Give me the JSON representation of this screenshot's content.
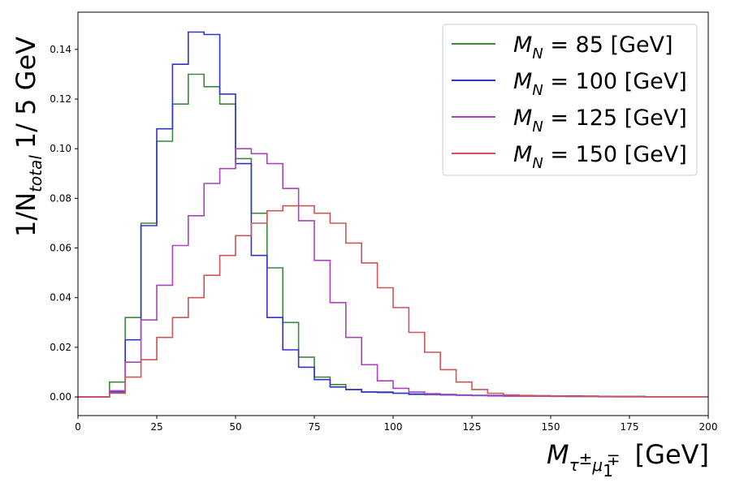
{
  "chart_data": {
    "type": "line",
    "style": "step-histogram",
    "xlabel": {
      "main": "M",
      "sub": "τ",
      "sub_sup": "±",
      "sub2": "μ",
      "sub2_sub": "1",
      "sub2_sup": "∓",
      "unit": "[GeV]"
    },
    "ylabel": {
      "prefix": "1/N",
      "sub": "total",
      "suffix": "1/ 5 GeV"
    },
    "xlim": [
      0,
      200
    ],
    "ylim": [
      -0.0075,
      0.155
    ],
    "xticks": [
      "0",
      "25",
      "50",
      "75",
      "100",
      "125",
      "150",
      "175",
      "200"
    ],
    "yticks": [
      "0.00",
      "0.02",
      "0.04",
      "0.06",
      "0.08",
      "0.10",
      "0.12",
      "0.14"
    ],
    "legend_position": "top-right",
    "bin_width": 5,
    "x_edges": [
      0,
      5,
      10,
      15,
      20,
      25,
      30,
      35,
      40,
      45,
      50,
      55,
      60,
      65,
      70,
      75,
      80,
      85,
      90,
      95,
      100,
      105,
      110,
      115,
      120,
      125,
      130,
      135,
      140,
      145,
      150,
      155,
      160,
      165,
      170,
      175,
      180,
      185,
      190,
      195,
      200
    ],
    "series": [
      {
        "name": "M_N = 85 [GeV]",
        "legend": {
          "m": "M",
          "sub": "N",
          "rest": " =  85  [GeV]"
        },
        "color": "#3a8a3a",
        "values": [
          0.0,
          0.0,
          0.006,
          0.032,
          0.07,
          0.103,
          0.118,
          0.13,
          0.125,
          0.118,
          0.096,
          0.074,
          0.052,
          0.03,
          0.016,
          0.008,
          0.005,
          0.003,
          0.002,
          0.002,
          0.0015,
          0.001,
          0.001,
          0.001,
          0.0008,
          0.0006,
          0.0005,
          0.0004,
          0.0004,
          0.0003,
          0.0003,
          0.0002,
          0.0002,
          0.0002,
          0.0001,
          0.0001,
          0.0001,
          0.0001,
          0.0001,
          0.0001
        ]
      },
      {
        "name": "M_N = 100 [GeV]",
        "legend": {
          "m": "M",
          "sub": "N",
          "rest": " = 100 [GeV]"
        },
        "color": "#3333cc",
        "values": [
          0.0,
          0.0,
          0.002,
          0.023,
          0.069,
          0.108,
          0.134,
          0.147,
          0.146,
          0.122,
          0.094,
          0.057,
          0.032,
          0.019,
          0.012,
          0.007,
          0.004,
          0.003,
          0.002,
          0.0018,
          0.0015,
          0.0012,
          0.001,
          0.0008,
          0.0007,
          0.0006,
          0.0006,
          0.0005,
          0.0005,
          0.0005,
          0.0004,
          0.0004,
          0.0003,
          0.0002,
          0.0002,
          0.0002,
          0.0001,
          0.0001,
          0.0001,
          0.0001
        ]
      },
      {
        "name": "M_N = 125 [GeV]",
        "legend": {
          "m": "M",
          "sub": "N",
          "rest": " = 125 [GeV]"
        },
        "color": "#aa44bb",
        "values": [
          0.0,
          0.0,
          0.0025,
          0.014,
          0.031,
          0.045,
          0.061,
          0.073,
          0.086,
          0.092,
          0.1,
          0.098,
          0.094,
          0.084,
          0.071,
          0.055,
          0.038,
          0.024,
          0.013,
          0.0065,
          0.0035,
          0.002,
          0.0013,
          0.001,
          0.0007,
          0.0005,
          0.0004,
          0.0003,
          0.0003,
          0.0003,
          0.0002,
          0.0002,
          0.0002,
          0.0001,
          0.0001,
          0.0001,
          0.0001,
          0.0001,
          0.0001,
          0.0001
        ]
      },
      {
        "name": "M_N = 150 [GeV]",
        "legend": {
          "m": "M",
          "sub": "N",
          "rest": " = 150 [GeV]"
        },
        "color": "#cc5555",
        "values": [
          0.0,
          0.0,
          0.0015,
          0.008,
          0.015,
          0.024,
          0.032,
          0.04,
          0.049,
          0.057,
          0.065,
          0.07,
          0.075,
          0.077,
          0.077,
          0.074,
          0.07,
          0.062,
          0.054,
          0.044,
          0.036,
          0.026,
          0.018,
          0.011,
          0.006,
          0.003,
          0.0015,
          0.0008,
          0.0006,
          0.0005,
          0.0004,
          0.0003,
          0.0003,
          0.0002,
          0.0002,
          0.0001,
          0.0001,
          0.0001,
          0.0001,
          0.0001
        ]
      }
    ]
  }
}
